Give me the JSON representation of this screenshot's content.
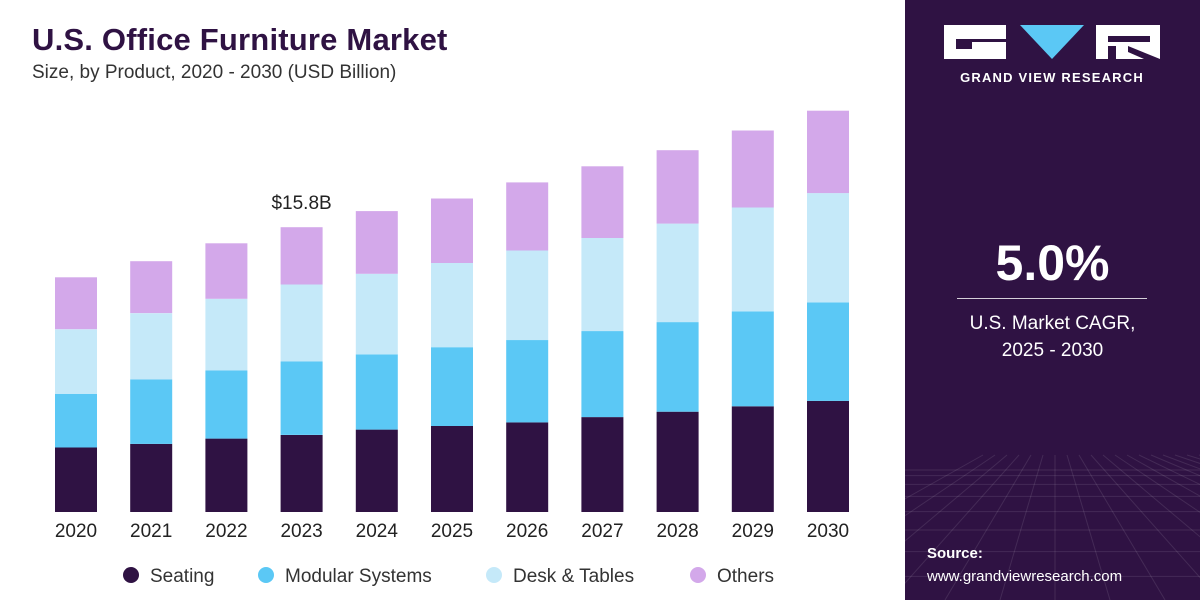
{
  "chart_data": {
    "type": "bar",
    "stacked": true,
    "title": "U.S. Office Furniture Market",
    "subtitle": "Size, by Product, 2020 - 2030 (USD Billion)",
    "categories": [
      "2020",
      "2021",
      "2022",
      "2023",
      "2024",
      "2025",
      "2026",
      "2027",
      "2028",
      "2029",
      "2030"
    ],
    "series": [
      {
        "name": "Seating",
        "color": "#2f1243",
        "values": [
          3.6,
          3.8,
          4.1,
          4.3,
          4.6,
          4.8,
          5.0,
          5.3,
          5.6,
          5.9,
          6.2
        ]
      },
      {
        "name": "Modular Systems",
        "color": "#5bc8f5",
        "values": [
          3.0,
          3.6,
          3.8,
          4.1,
          4.2,
          4.4,
          4.6,
          4.8,
          5.0,
          5.3,
          5.5
        ]
      },
      {
        "name": "Desk & Tables",
        "color": "#c5e9f9",
        "values": [
          3.6,
          3.7,
          4.0,
          4.3,
          4.5,
          4.7,
          5.0,
          5.2,
          5.5,
          5.8,
          6.1
        ]
      },
      {
        "name": "Others",
        "color": "#d3a8ea",
        "values": [
          2.9,
          2.9,
          3.1,
          3.2,
          3.5,
          3.6,
          3.8,
          4.0,
          4.1,
          4.3,
          4.6
        ]
      }
    ],
    "annotations": [
      {
        "category": "2023",
        "text": "$15.8B"
      }
    ],
    "ylim": [
      0,
      23
    ],
    "grid": false,
    "legend": "bottom"
  },
  "brand": {
    "name": "GRAND VIEW RESEARCH",
    "logo_colors": {
      "letters": "#ffffff",
      "accent": "#5bc8f5"
    }
  },
  "highlight": {
    "value": "5.0%",
    "label_line1": "U.S. Market CAGR,",
    "label_line2": "2025 - 2030"
  },
  "source": {
    "label": "Source:",
    "url": "www.grandviewresearch.com"
  },
  "colors": {
    "panel": "#2f1243",
    "title": "#2f1243"
  }
}
